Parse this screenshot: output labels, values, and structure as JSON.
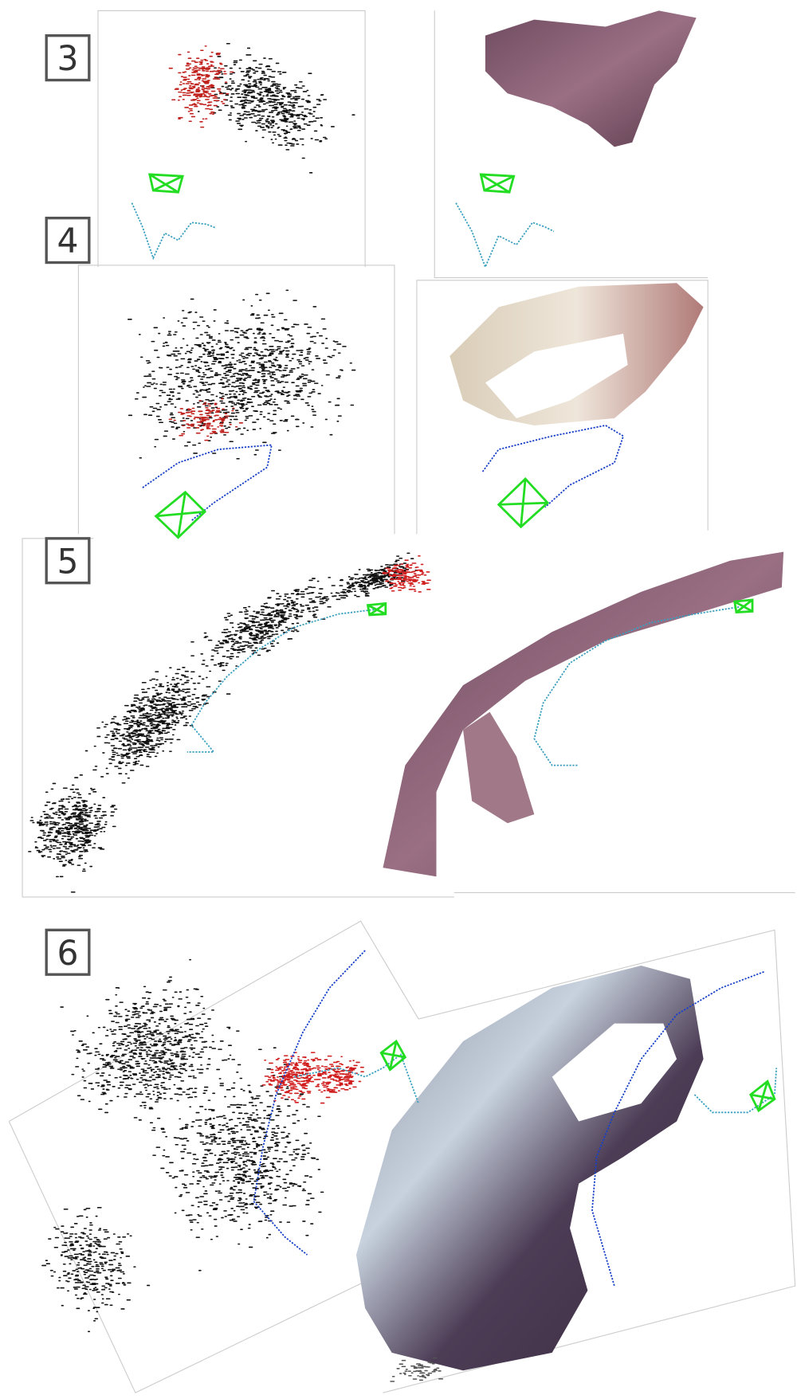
{
  "panels": [
    {
      "label": "3"
    },
    {
      "label": "4"
    },
    {
      "label": "5"
    },
    {
      "label": "6"
    }
  ]
}
